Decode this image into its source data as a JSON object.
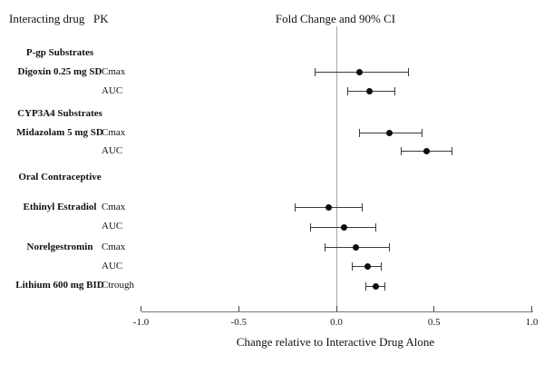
{
  "header": {
    "interacting_drug": "Interacting drug",
    "pk": "PK",
    "plot_title": "Fold Change and 90% CI"
  },
  "axis": {
    "xlabel": "Change relative to Interactive Drug Alone",
    "x_tick_labels": [
      "-1.0",
      "-0.5",
      "0.0",
      "0.5",
      "1.0"
    ],
    "x_tick_values": [
      -1.0,
      -0.5,
      0.0,
      0.5,
      1.0
    ]
  },
  "chart_data": {
    "type": "scatter",
    "subtype": "forest-plot",
    "title": "Fold Change and 90% CI",
    "xlabel": "Change relative to Interactive Drug Alone",
    "xlim": [
      -1.0,
      1.0
    ],
    "x_ticks": [
      -1.0,
      -0.5,
      0.0,
      0.5,
      1.0
    ],
    "reference_line": 0.0,
    "ci_level": "90%",
    "rows": [
      {
        "type": "group",
        "label": "P-gp Substrates"
      },
      {
        "type": "data",
        "drug": "Digoxin 0.25 mg SD",
        "pk": "Cmax",
        "estimate": 0.12,
        "ci90_low": -0.11,
        "ci90_high": 0.37
      },
      {
        "type": "data",
        "drug": "",
        "pk": "AUC",
        "estimate": 0.17,
        "ci90_low": 0.06,
        "ci90_high": 0.3
      },
      {
        "type": "group",
        "label": "CYP3A4 Substrates"
      },
      {
        "type": "data",
        "drug": "Midazolam 5 mg SD",
        "pk": "Cmax",
        "estimate": 0.27,
        "ci90_low": 0.12,
        "ci90_high": 0.44
      },
      {
        "type": "data",
        "drug": "",
        "pk": "AUC",
        "estimate": 0.46,
        "ci90_low": 0.33,
        "ci90_high": 0.59
      },
      {
        "type": "group",
        "label": "Oral Contraceptive"
      },
      {
        "type": "data",
        "drug": "Ethinyl Estradiol",
        "pk": "Cmax",
        "estimate": -0.04,
        "ci90_low": -0.21,
        "ci90_high": 0.13
      },
      {
        "type": "data",
        "drug": "",
        "pk": "AUC",
        "estimate": 0.04,
        "ci90_low": -0.13,
        "ci90_high": 0.2
      },
      {
        "type": "data",
        "drug": "Norelgestromin",
        "pk": "Cmax",
        "estimate": 0.1,
        "ci90_low": -0.06,
        "ci90_high": 0.27
      },
      {
        "type": "data",
        "drug": "",
        "pk": "AUC",
        "estimate": 0.16,
        "ci90_low": 0.08,
        "ci90_high": 0.23
      },
      {
        "type": "data",
        "drug": "Lithium 600 mg BID",
        "pk": "Ctrough",
        "estimate": 0.2,
        "ci90_low": 0.15,
        "ci90_high": 0.25
      }
    ]
  }
}
